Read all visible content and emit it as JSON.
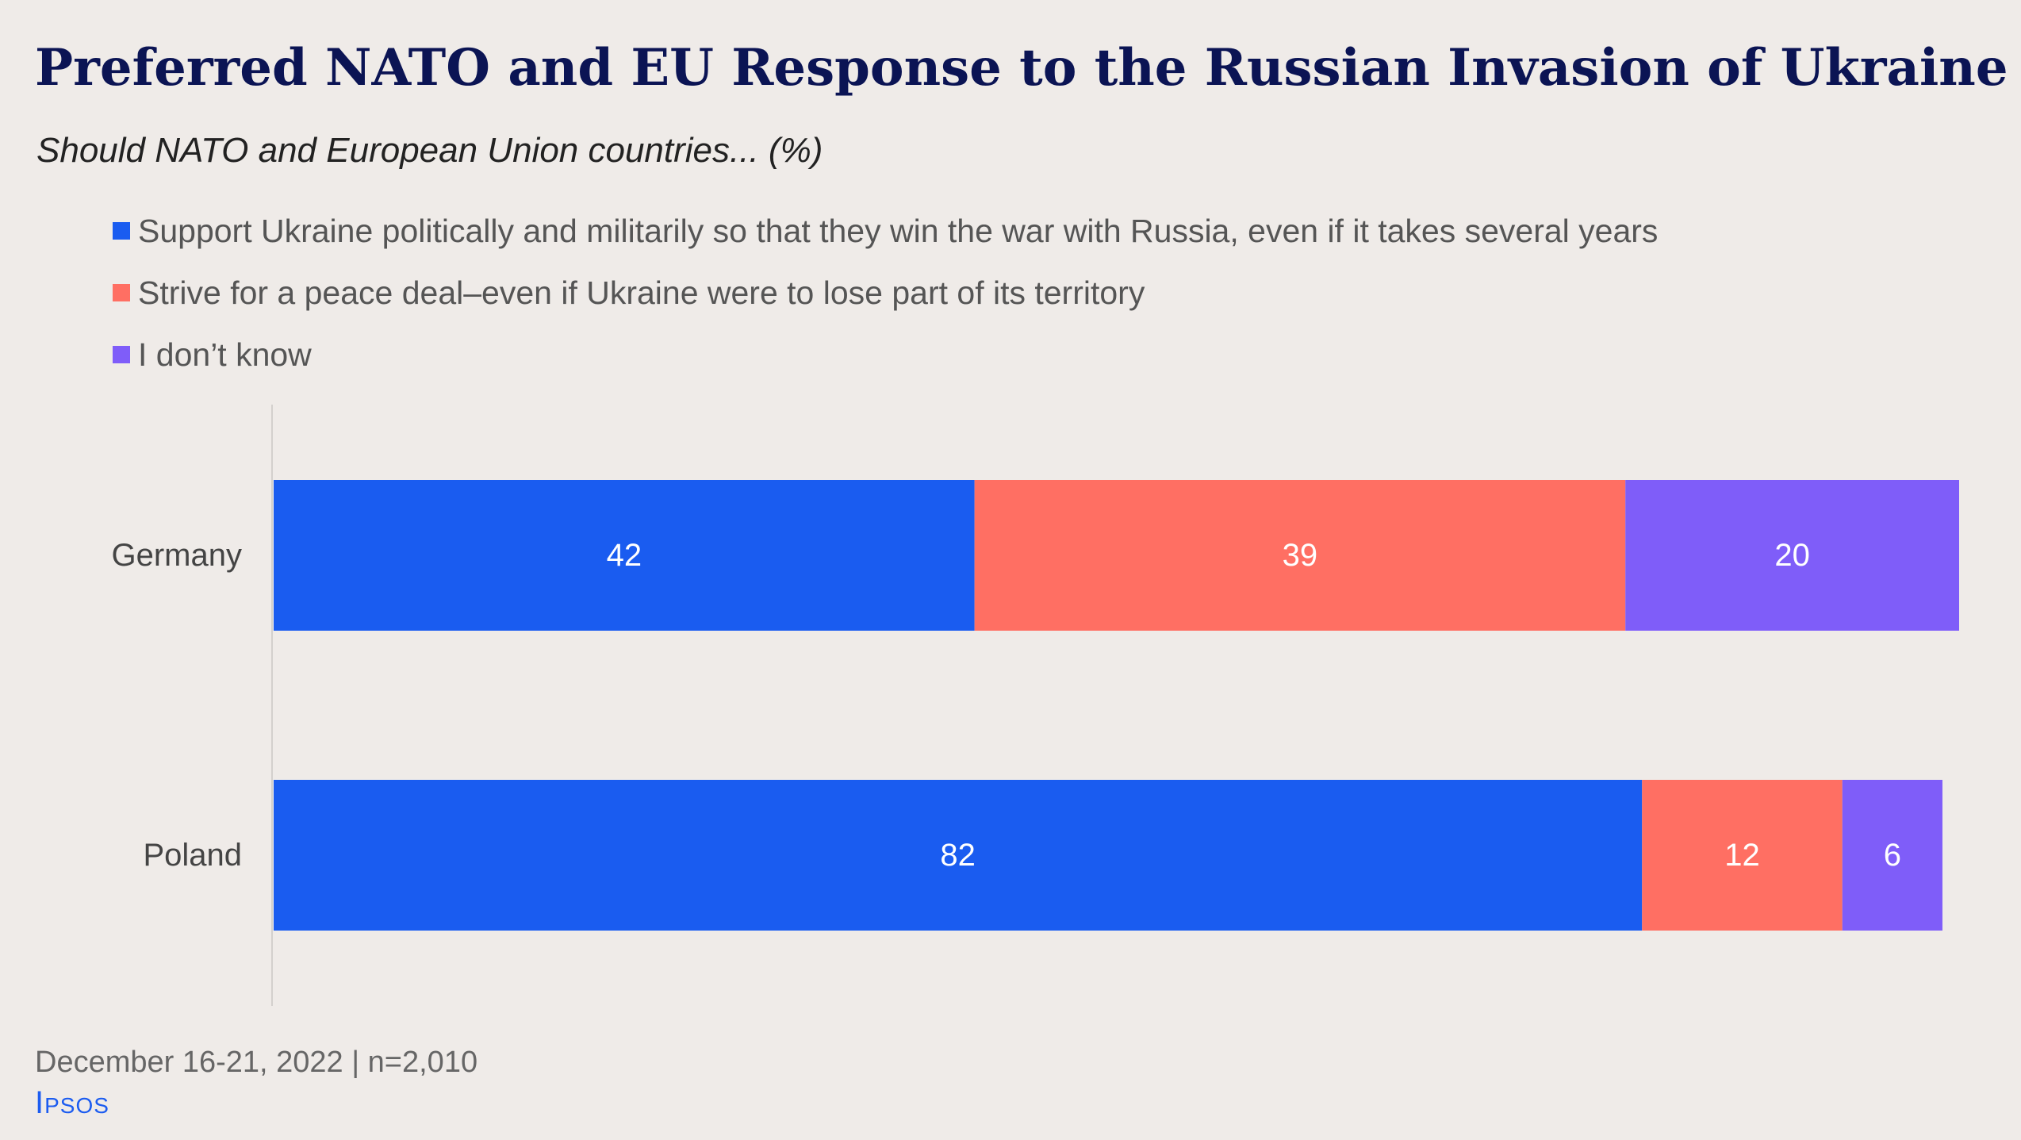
{
  "colors": {
    "series": [
      "#1a5cf0",
      "#ff6f63",
      "#7f5df9"
    ],
    "title": "#0b1454",
    "label_on_bar": "#ffffff",
    "category_label": "#444444",
    "axis_line": "#d3d0cd"
  },
  "chart_data": {
    "type": "bar",
    "orientation": "horizontal",
    "stacked": true,
    "title": "Preferred NATO and EU Response to the Russian Invasion of Ukraine",
    "subtitle": "Should NATO and European Union countries... (%)",
    "categories": [
      "Germany",
      "Poland"
    ],
    "series": [
      {
        "name": "Support Ukraine politically and militarily so that they win the war with Russia, even if it takes several years",
        "values": [
          42,
          82
        ]
      },
      {
        "name": "Strive for a peace deal–even if Ukraine were to lose part of its territory",
        "values": [
          39,
          12
        ]
      },
      {
        "name": "I don’t know",
        "values": [
          20,
          6
        ]
      }
    ],
    "xlim": [
      0,
      101
    ],
    "grid": false,
    "legend_position": "top-left",
    "data_labels": true
  },
  "footer": {
    "note": "December 16-21, 2022 | n=2,010",
    "brand": "Ipsos"
  }
}
